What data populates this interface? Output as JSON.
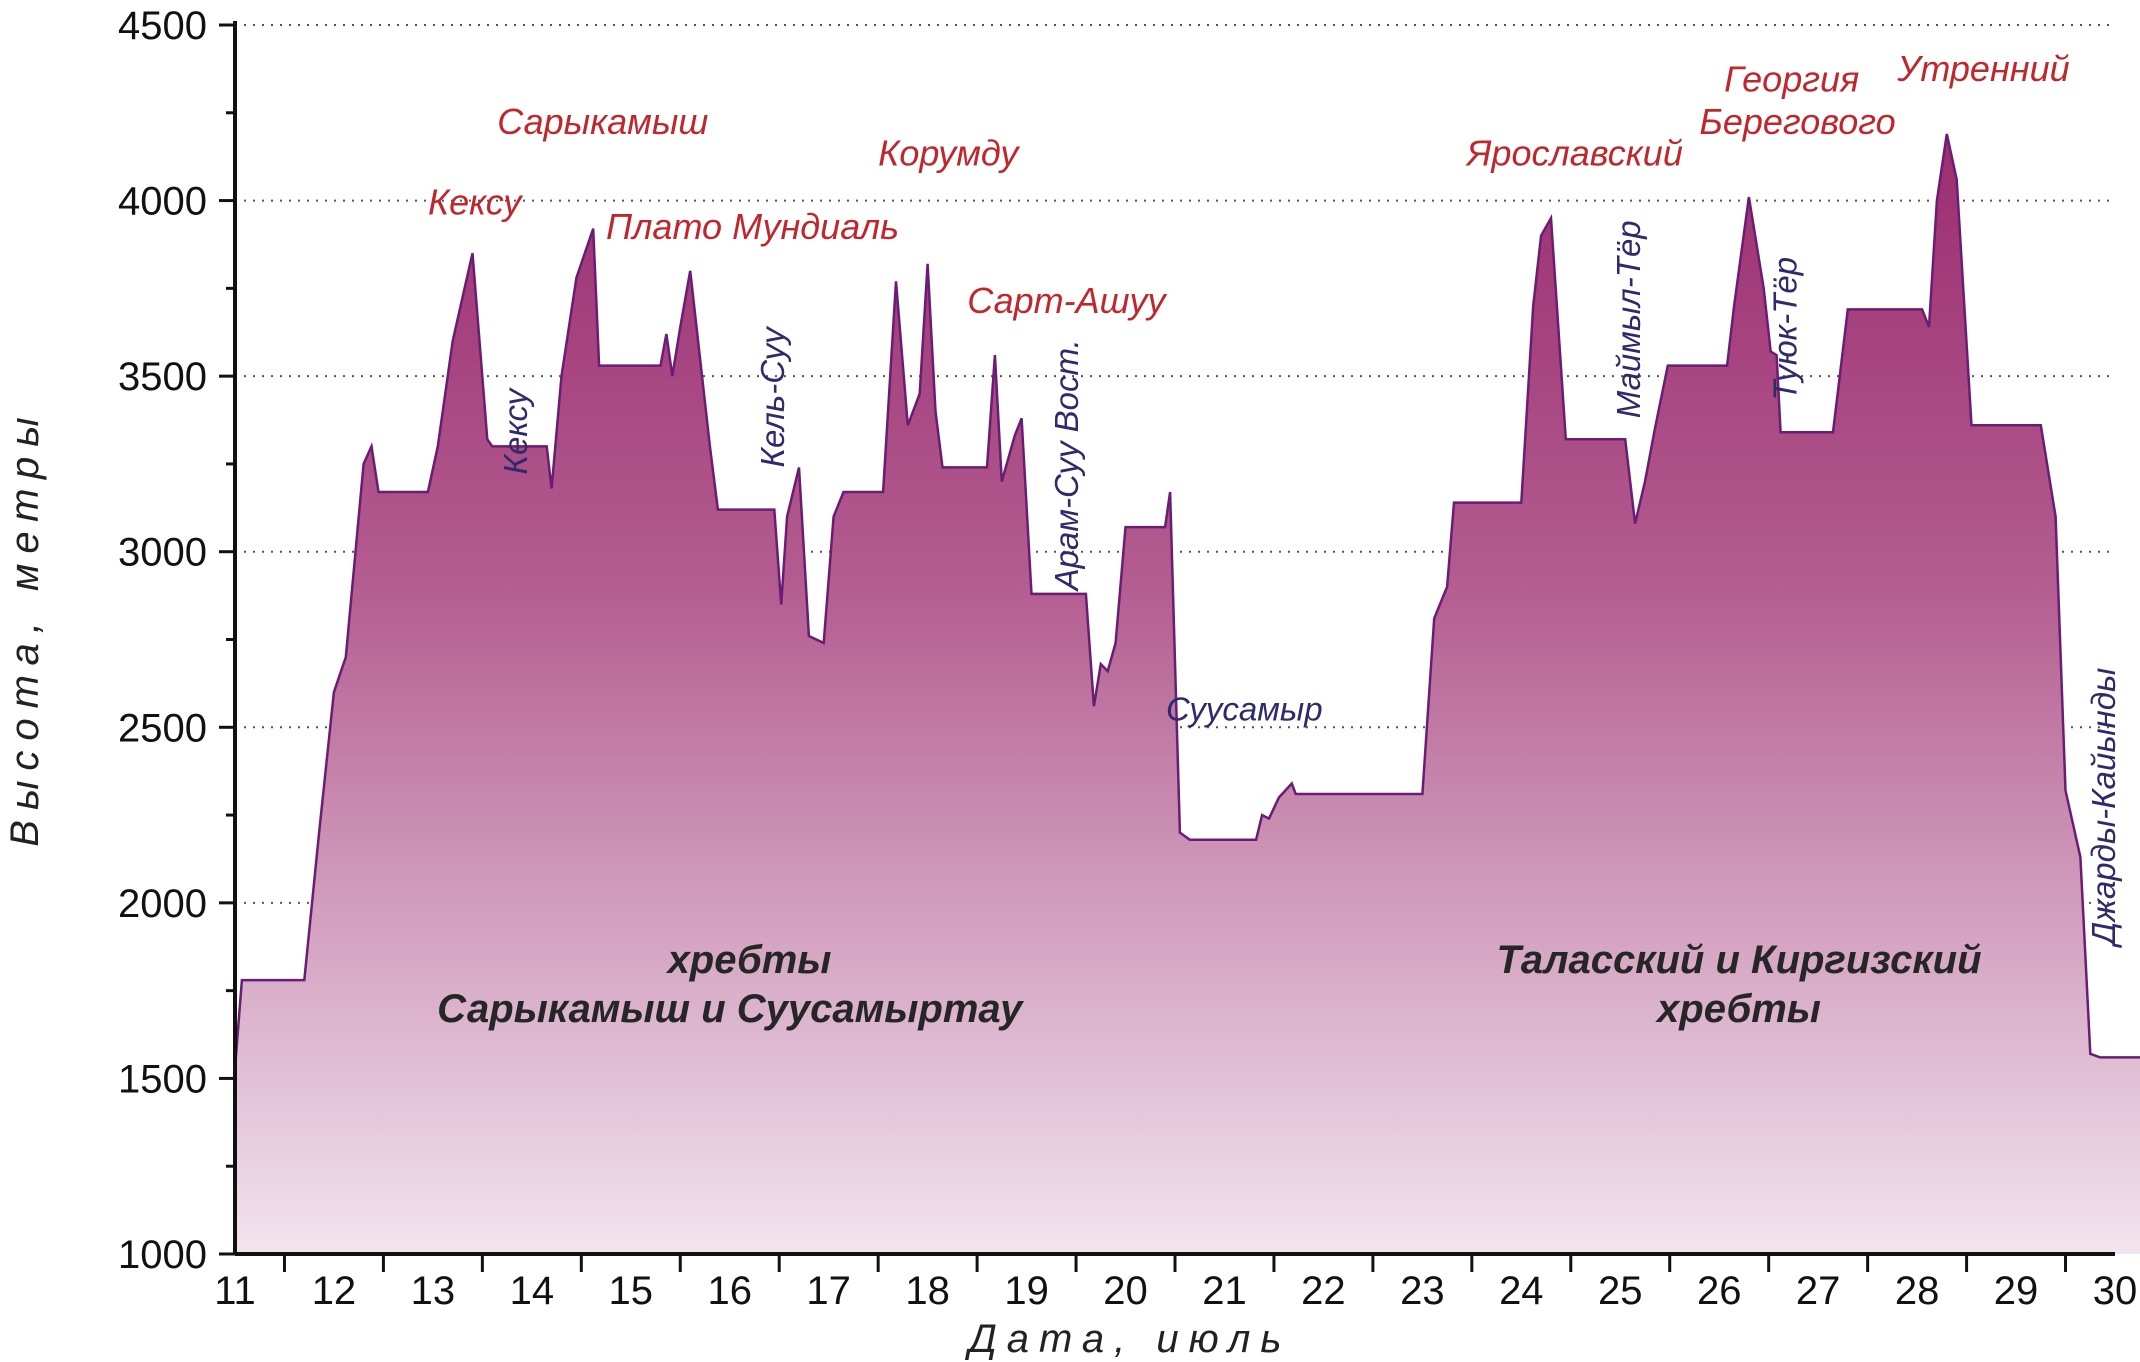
{
  "chart_data": {
    "type": "area",
    "xlabel": "Дата, июль",
    "ylabel": "Высота, метры",
    "ylim": [
      1000,
      4500
    ],
    "yticks": [
      1000,
      1500,
      2000,
      2500,
      3000,
      3500,
      4000,
      4500
    ],
    "x_range": [
      11,
      30
    ],
    "x_ticks": [
      "11",
      "12",
      "13",
      "14",
      "15",
      "16",
      "17",
      "18",
      "19",
      "20",
      "21",
      "22",
      "23",
      "24",
      "25",
      "26",
      "27",
      "28",
      "29",
      "30"
    ],
    "grid": "horizontal dotted",
    "colors": {
      "area_top": "#9b2d70",
      "area_bottom": "#f2e4ee",
      "line": "#6a1e73",
      "pass": "#c0272d",
      "valley": "#2e2a6b"
    },
    "profile": [
      [
        11.0,
        1530
      ],
      [
        11.07,
        1780
      ],
      [
        11.7,
        1780
      ],
      [
        11.85,
        2200
      ],
      [
        12.0,
        2600
      ],
      [
        12.12,
        2700
      ],
      [
        12.3,
        3250
      ],
      [
        12.38,
        3300
      ],
      [
        12.45,
        3170
      ],
      [
        12.95,
        3170
      ],
      [
        13.05,
        3300
      ],
      [
        13.2,
        3600
      ],
      [
        13.4,
        3850
      ],
      [
        13.55,
        3320
      ],
      [
        13.6,
        3300
      ],
      [
        14.15,
        3300
      ],
      [
        14.2,
        3180
      ],
      [
        14.3,
        3500
      ],
      [
        14.45,
        3780
      ],
      [
        14.62,
        3920
      ],
      [
        14.68,
        3530
      ],
      [
        15.3,
        3530
      ],
      [
        15.36,
        3620
      ],
      [
        15.42,
        3500
      ],
      [
        15.5,
        3640
      ],
      [
        15.6,
        3800
      ],
      [
        15.8,
        3300
      ],
      [
        15.88,
        3120
      ],
      [
        16.45,
        3120
      ],
      [
        16.52,
        2850
      ],
      [
        16.58,
        3100
      ],
      [
        16.7,
        3240
      ],
      [
        16.8,
        2760
      ],
      [
        16.95,
        2740
      ],
      [
        17.05,
        3100
      ],
      [
        17.15,
        3170
      ],
      [
        17.55,
        3170
      ],
      [
        17.68,
        3770
      ],
      [
        17.8,
        3360
      ],
      [
        17.92,
        3450
      ],
      [
        18.0,
        3820
      ],
      [
        18.08,
        3400
      ],
      [
        18.15,
        3240
      ],
      [
        18.6,
        3240
      ],
      [
        18.68,
        3560
      ],
      [
        18.75,
        3200
      ],
      [
        18.88,
        3330
      ],
      [
        18.95,
        3380
      ],
      [
        19.05,
        2880
      ],
      [
        19.6,
        2880
      ],
      [
        19.68,
        2560
      ],
      [
        19.75,
        2680
      ],
      [
        19.82,
        2660
      ],
      [
        19.9,
        2740
      ],
      [
        20.0,
        3070
      ],
      [
        20.4,
        3070
      ],
      [
        20.45,
        3170
      ],
      [
        20.55,
        2200
      ],
      [
        20.65,
        2180
      ],
      [
        21.32,
        2180
      ],
      [
        21.38,
        2250
      ],
      [
        21.45,
        2240
      ],
      [
        21.55,
        2300
      ],
      [
        21.68,
        2340
      ],
      [
        21.72,
        2310
      ],
      [
        23.0,
        2310
      ],
      [
        23.12,
        2810
      ],
      [
        23.25,
        2900
      ],
      [
        23.32,
        3140
      ],
      [
        24.0,
        3140
      ],
      [
        24.12,
        3700
      ],
      [
        24.2,
        3900
      ],
      [
        24.3,
        3950
      ],
      [
        24.45,
        3320
      ],
      [
        25.05,
        3320
      ],
      [
        25.15,
        3080
      ],
      [
        25.25,
        3200
      ],
      [
        25.35,
        3350
      ],
      [
        25.48,
        3530
      ],
      [
        26.08,
        3530
      ],
      [
        26.15,
        3700
      ],
      [
        26.3,
        4010
      ],
      [
        26.45,
        3750
      ],
      [
        26.52,
        3570
      ],
      [
        26.58,
        3560
      ],
      [
        26.62,
        3340
      ],
      [
        27.15,
        3340
      ],
      [
        27.3,
        3690
      ],
      [
        28.05,
        3690
      ],
      [
        28.12,
        3640
      ],
      [
        28.2,
        4000
      ],
      [
        28.3,
        4190
      ],
      [
        28.4,
        4060
      ],
      [
        28.55,
        3360
      ],
      [
        29.25,
        3360
      ],
      [
        29.4,
        3100
      ],
      [
        29.5,
        2320
      ],
      [
        29.65,
        2130
      ],
      [
        29.75,
        1570
      ],
      [
        29.85,
        1560
      ],
      [
        30.3,
        1560
      ],
      [
        30.38,
        1320
      ],
      [
        30.5,
        1000
      ]
    ],
    "pass_labels": [
      {
        "text": "Кексу",
        "x": 12.95,
        "y": 3960
      },
      {
        "text": "Сарыкамыш",
        "x": 13.65,
        "y": 4190
      },
      {
        "text": "Плато Мундиаль",
        "x": 14.75,
        "y": 3890
      },
      {
        "text": "Корумду",
        "x": 17.5,
        "y": 4100
      },
      {
        "text": "Сарт-Ашуу",
        "x": 18.4,
        "y": 3680
      },
      {
        "text": "Ярославский",
        "x": 23.45,
        "y": 4100
      },
      {
        "text": "Георгия",
        "x": 26.05,
        "y": 4310
      },
      {
        "text": "Берегового",
        "x": 25.8,
        "y": 4190
      },
      {
        "text": "Утренний",
        "x": 27.8,
        "y": 4340
      }
    ],
    "valley_labels": [
      {
        "text": "Кексу",
        "x": 13.95,
        "y": 3220,
        "rotate": -90
      },
      {
        "text": "Кель-Суу",
        "x": 16.55,
        "y": 3240,
        "rotate": -90
      },
      {
        "text": "Арам-Суу Вост.",
        "x": 19.52,
        "y": 2890,
        "rotate": -90
      },
      {
        "text": "Суусамыр",
        "x": 21.2,
        "y": 2520,
        "rotate": 0
      },
      {
        "text": "Маймыл-Тёр",
        "x": 25.2,
        "y": 3380,
        "rotate": -90
      },
      {
        "text": "Туюк-Тёр",
        "x": 26.78,
        "y": 3430,
        "rotate": -90
      },
      {
        "text": "Джарды-Кайынды",
        "x": 30.0,
        "y": 1880,
        "rotate": -90
      }
    ],
    "region_labels": [
      {
        "text": "хребты",
        "x": 16.2,
        "y": 1800
      },
      {
        "text": "Сарыкамыш и Суусамыртау",
        "x": 16.0,
        "y": 1660
      },
      {
        "text": "Таласский и Киргизский",
        "x": 26.2,
        "y": 1800
      },
      {
        "text": "хребты",
        "x": 26.2,
        "y": 1660
      }
    ]
  }
}
